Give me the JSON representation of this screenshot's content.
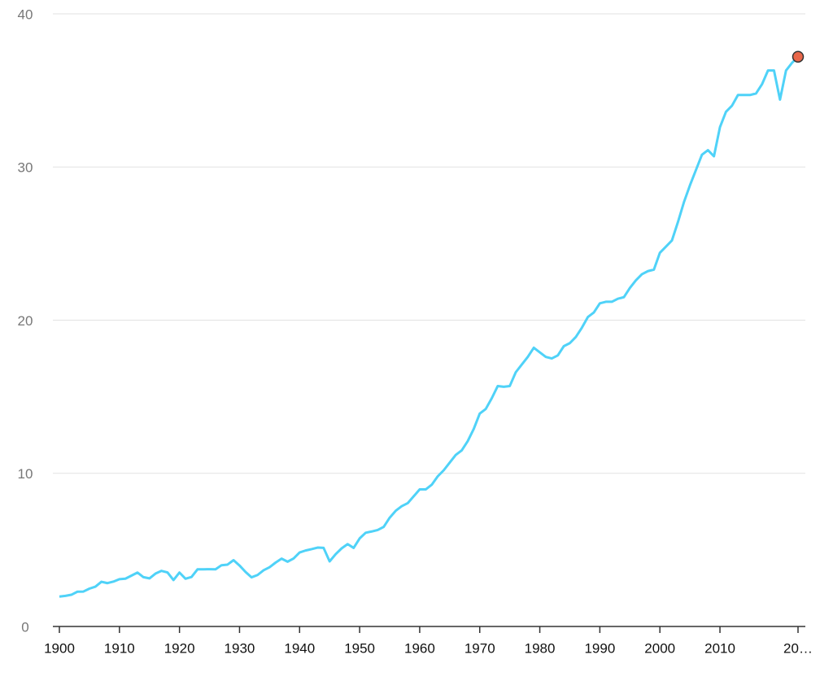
{
  "chart_data": {
    "type": "line",
    "x": [
      1900,
      1901,
      1902,
      1903,
      1904,
      1905,
      1906,
      1907,
      1908,
      1909,
      1910,
      1911,
      1912,
      1913,
      1914,
      1915,
      1916,
      1917,
      1918,
      1919,
      1920,
      1921,
      1922,
      1923,
      1924,
      1925,
      1926,
      1927,
      1928,
      1929,
      1930,
      1931,
      1932,
      1933,
      1934,
      1935,
      1936,
      1937,
      1938,
      1939,
      1940,
      1941,
      1942,
      1943,
      1944,
      1945,
      1946,
      1947,
      1948,
      1949,
      1950,
      1951,
      1952,
      1953,
      1954,
      1955,
      1956,
      1957,
      1958,
      1959,
      1960,
      1961,
      1962,
      1963,
      1964,
      1965,
      1966,
      1967,
      1968,
      1969,
      1970,
      1971,
      1972,
      1973,
      1974,
      1975,
      1976,
      1977,
      1978,
      1979,
      1980,
      1981,
      1982,
      1983,
      1984,
      1985,
      1986,
      1987,
      1988,
      1989,
      1990,
      1991,
      1992,
      1993,
      1994,
      1995,
      1996,
      1997,
      1998,
      1999,
      2000,
      2001,
      2002,
      2003,
      2004,
      2005,
      2006,
      2007,
      2008,
      2009,
      2010,
      2011,
      2012,
      2013,
      2014,
      2015,
      2016,
      2017,
      2018,
      2019,
      2020,
      2021,
      2022,
      2023
    ],
    "values": [
      1.95,
      2.0,
      2.07,
      2.27,
      2.28,
      2.47,
      2.6,
      2.92,
      2.83,
      2.93,
      3.09,
      3.12,
      3.32,
      3.52,
      3.22,
      3.14,
      3.45,
      3.63,
      3.53,
      3.03,
      3.52,
      3.12,
      3.23,
      3.73,
      3.73,
      3.74,
      3.73,
      4.0,
      4.04,
      4.33,
      3.98,
      3.56,
      3.21,
      3.36,
      3.67,
      3.87,
      4.17,
      4.43,
      4.23,
      4.44,
      4.83,
      4.96,
      5.05,
      5.15,
      5.13,
      4.25,
      4.72,
      5.1,
      5.38,
      5.13,
      5.75,
      6.12,
      6.2,
      6.3,
      6.5,
      7.1,
      7.55,
      7.85,
      8.05,
      8.5,
      8.95,
      8.95,
      9.25,
      9.8,
      10.2,
      10.7,
      11.2,
      11.5,
      12.1,
      12.9,
      13.9,
      14.2,
      14.9,
      15.7,
      15.65,
      15.7,
      16.6,
      17.1,
      17.6,
      18.2,
      17.9,
      17.6,
      17.5,
      17.7,
      18.3,
      18.5,
      18.9,
      19.5,
      20.2,
      20.5,
      21.1,
      21.2,
      21.2,
      21.4,
      21.5,
      22.1,
      22.6,
      23.0,
      23.2,
      23.3,
      24.4,
      24.8,
      25.2,
      26.4,
      27.7,
      28.8,
      29.8,
      30.8,
      31.1,
      30.7,
      32.6,
      33.6,
      34.0,
      34.7,
      34.7,
      34.7,
      34.8,
      35.4,
      36.3,
      36.3,
      34.4,
      36.3,
      36.8,
      37.2
    ],
    "color": "#4fd2f8",
    "highlight_color": "#e9674a",
    "xlim": [
      1900,
      2023
    ],
    "xticks": [
      1900,
      1910,
      1920,
      1930,
      1940,
      1950,
      1960,
      1970,
      1980,
      1990,
      2000,
      2010,
      {
        "value": 2023,
        "label": "20…"
      }
    ],
    "ylim": [
      0,
      40
    ],
    "yticks": [
      0,
      10,
      20,
      30,
      40
    ],
    "grid": true
  }
}
